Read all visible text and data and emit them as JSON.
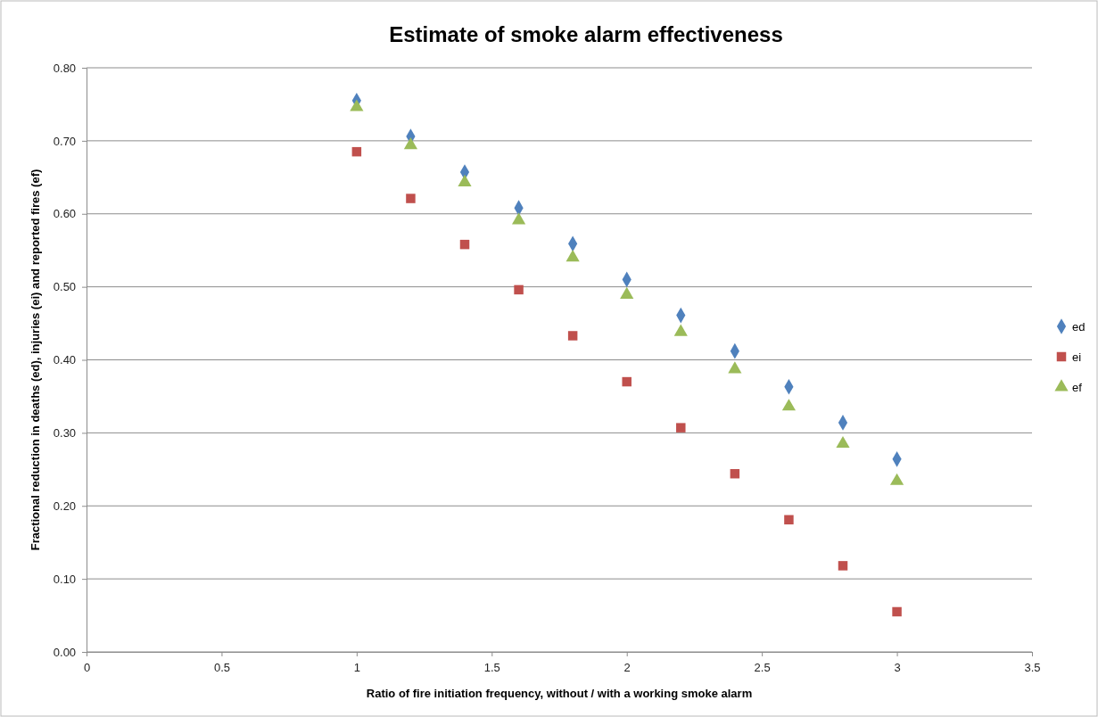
{
  "chart_data": {
    "type": "scatter",
    "title": "Estimate of smoke alarm effectiveness",
    "xlabel": "Ratio of fire initiation frequency, without / with a working smoke alarm",
    "ylabel": "Fractional reduction in deaths (ed), injuries (ei) and reported fires (ef)",
    "x": [
      1,
      1.2,
      1.4,
      1.6,
      1.8,
      2,
      2.2,
      2.4,
      2.6,
      2.8,
      3
    ],
    "series": [
      {
        "name": "ed",
        "color": "#4f81bd",
        "marker": "diamond",
        "values": [
          0.755,
          0.706,
          0.657,
          0.608,
          0.559,
          0.51,
          0.461,
          0.412,
          0.363,
          0.314,
          0.264
        ]
      },
      {
        "name": "ei",
        "color": "#c0504d",
        "marker": "square",
        "values": [
          0.685,
          0.621,
          0.558,
          0.496,
          0.433,
          0.37,
          0.307,
          0.244,
          0.181,
          0.118,
          0.055
        ]
      },
      {
        "name": "ef",
        "color": "#9bbb59",
        "marker": "triangle",
        "values": [
          0.746,
          0.694,
          0.643,
          0.591,
          0.54,
          0.489,
          0.438,
          0.387,
          0.336,
          0.285,
          0.234
        ]
      }
    ],
    "xlim": [
      0,
      3.5
    ],
    "xticks": [
      0,
      0.5,
      1,
      1.5,
      2,
      2.5,
      3,
      3.5
    ],
    "ylim": [
      0,
      0.8
    ],
    "yticks": [
      {
        "value": 0,
        "label": "0.00"
      },
      {
        "value": 0.1,
        "label": "0.10"
      },
      {
        "value": 0.2,
        "label": "0.20"
      },
      {
        "value": 0.3,
        "label": "0.30"
      },
      {
        "value": 0.4,
        "label": "0.40"
      },
      {
        "value": 0.5,
        "label": "0.50"
      },
      {
        "value": 0.6,
        "label": "0.60"
      },
      {
        "value": 0.7,
        "label": "0.70"
      },
      {
        "value": 0.8,
        "label": "0.80"
      }
    ],
    "grid": "y",
    "legend": "right"
  }
}
